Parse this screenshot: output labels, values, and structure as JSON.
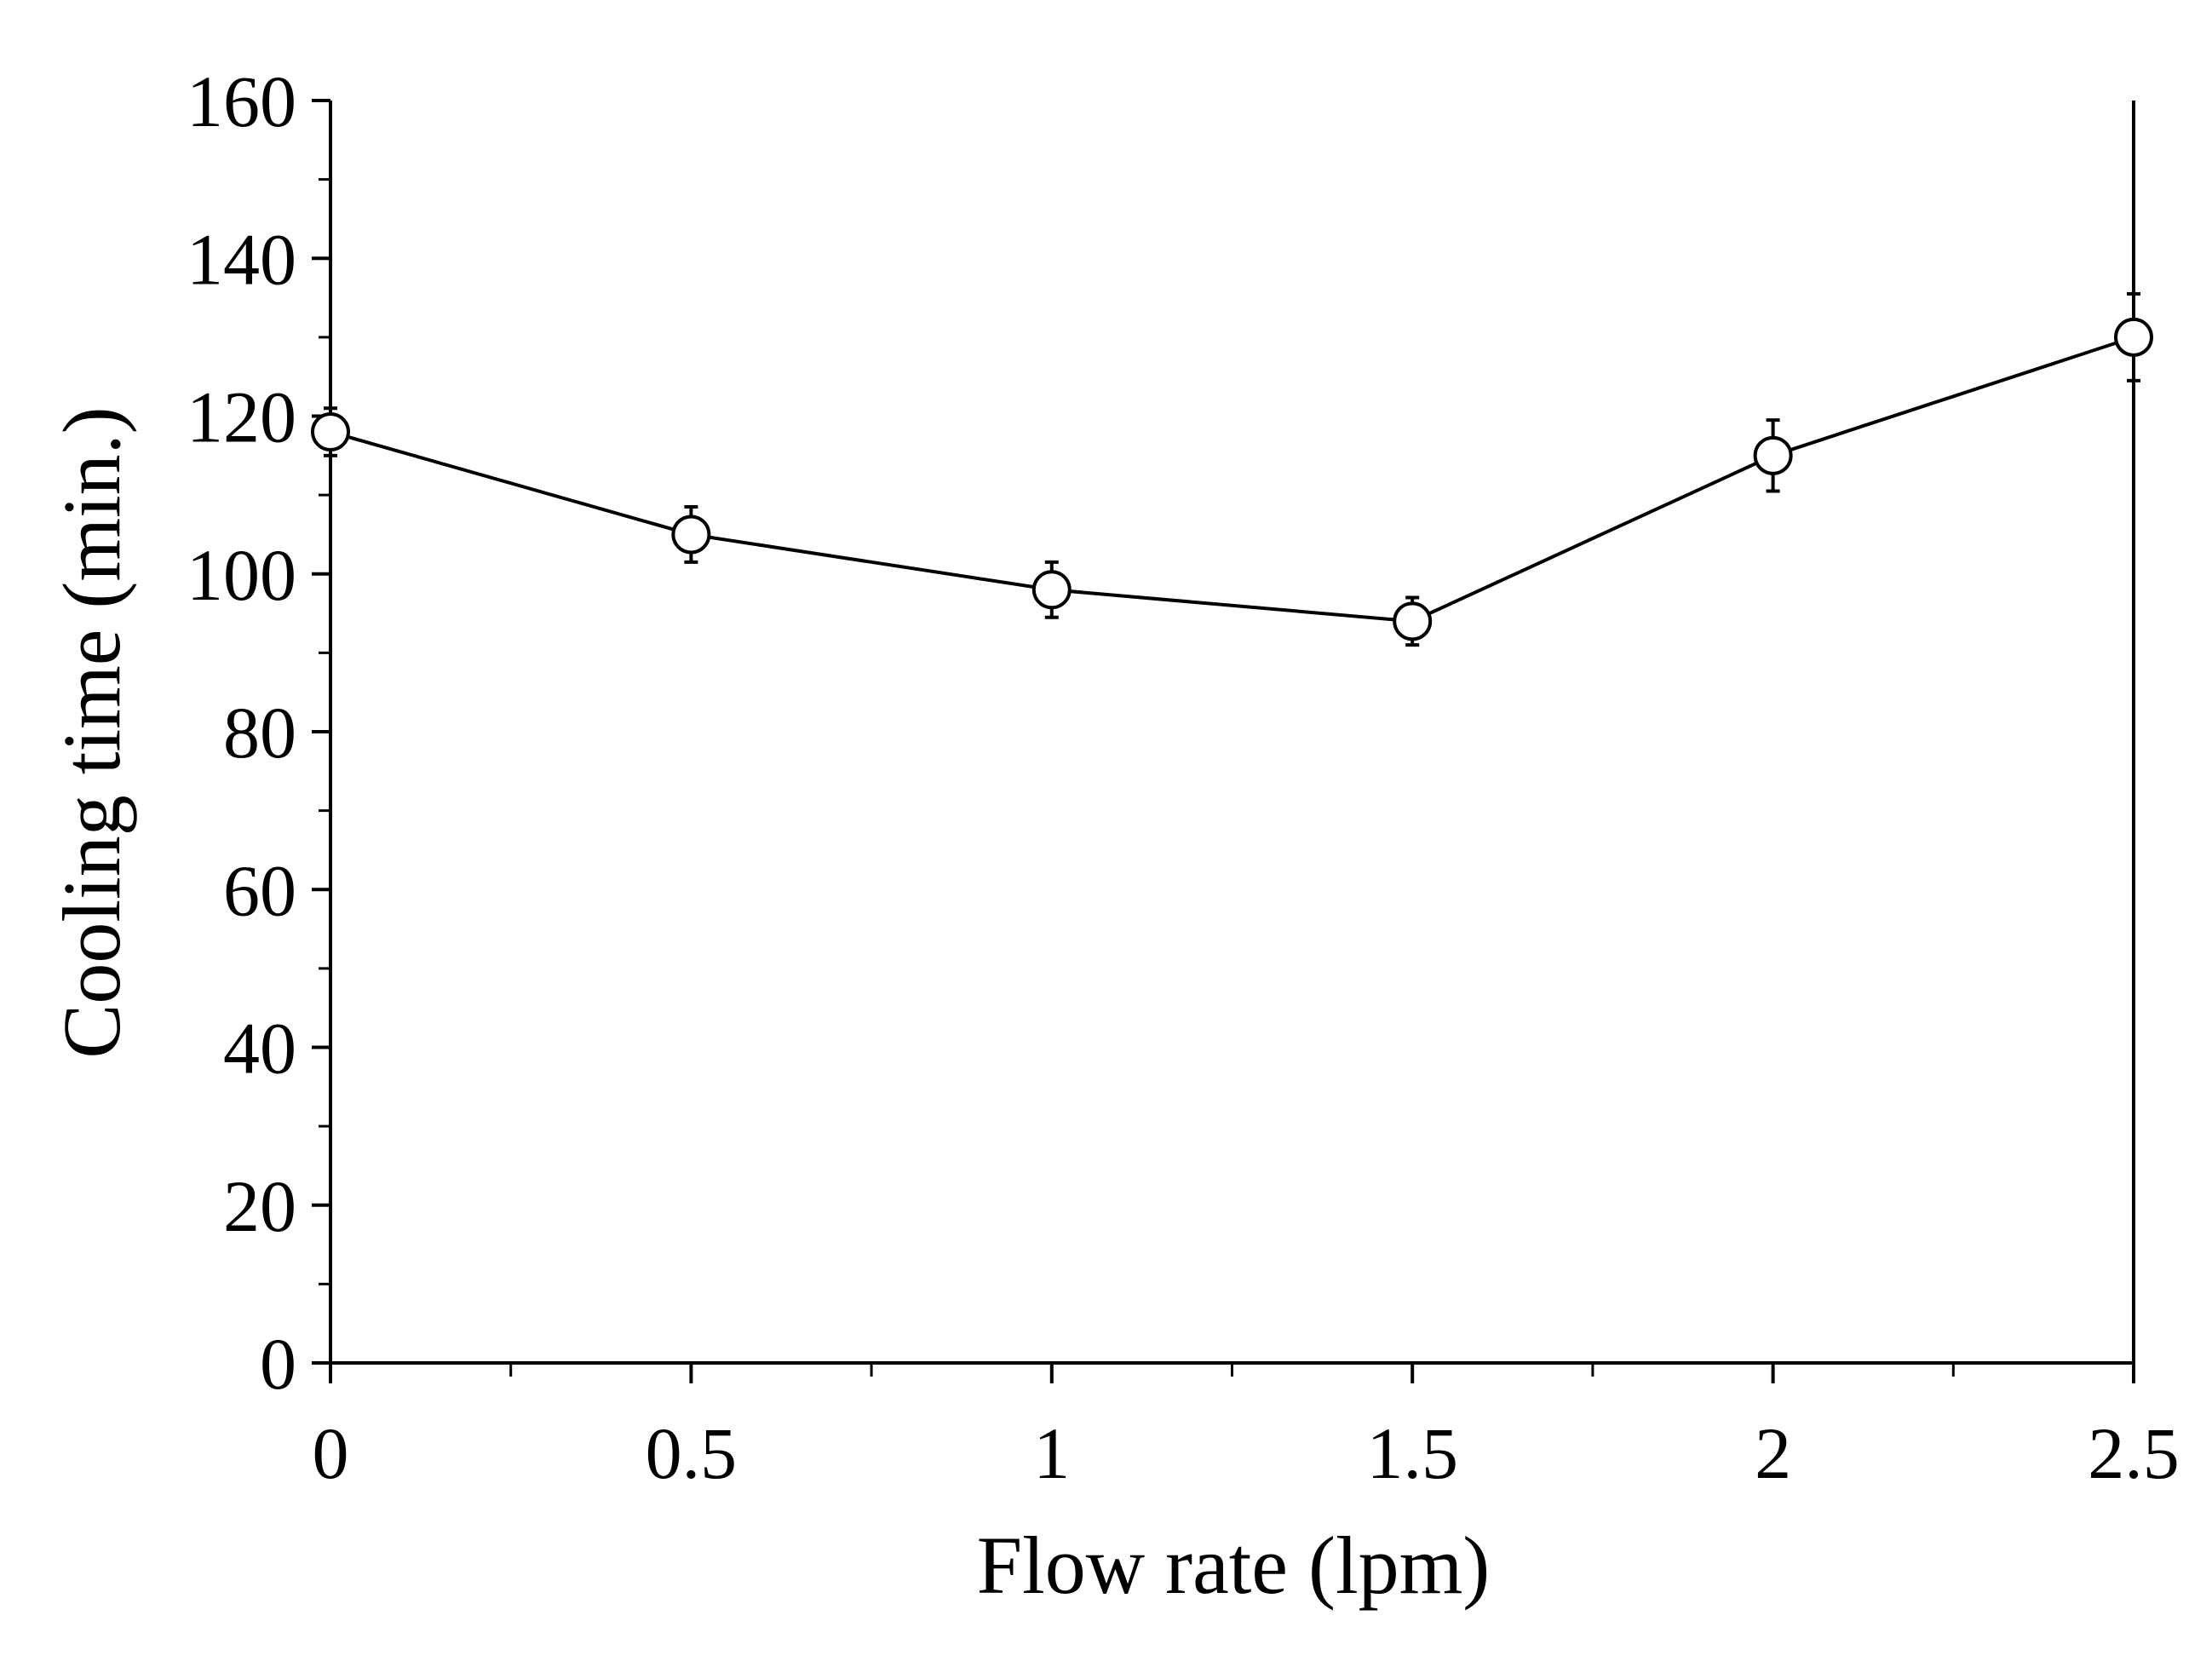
{
  "chart_data": {
    "type": "line",
    "title": "",
    "xlabel": "Flow rate (lpm)",
    "ylabel": "Cooling time (min.)",
    "xlim": [
      0,
      2.5
    ],
    "ylim": [
      0,
      160
    ],
    "x_ticks": [
      0,
      0.5,
      1,
      1.5,
      2,
      2.5
    ],
    "x_tick_labels": [
      "0",
      "0.5",
      "1",
      "1.5",
      "2",
      "2.5"
    ],
    "x_minor_step": 0.25,
    "y_ticks": [
      0,
      20,
      40,
      60,
      80,
      100,
      120,
      140,
      160
    ],
    "y_tick_labels": [
      "0",
      "20",
      "40",
      "60",
      "80",
      "100",
      "120",
      "140",
      "160"
    ],
    "y_minor_step": 10,
    "grid": false,
    "legend": "none",
    "series": [
      {
        "name": "Cooling time",
        "marker": "open-circle",
        "x": [
          0,
          0.5,
          1,
          1.5,
          2,
          2.5
        ],
        "values": [
          118,
          105,
          98,
          94,
          115,
          130
        ],
        "error": [
          3,
          3.5,
          3.5,
          3,
          4.5,
          5.5
        ]
      }
    ],
    "colors": {
      "line": "#000000",
      "marker_fill": "#ffffff",
      "axis": "#000000"
    }
  }
}
